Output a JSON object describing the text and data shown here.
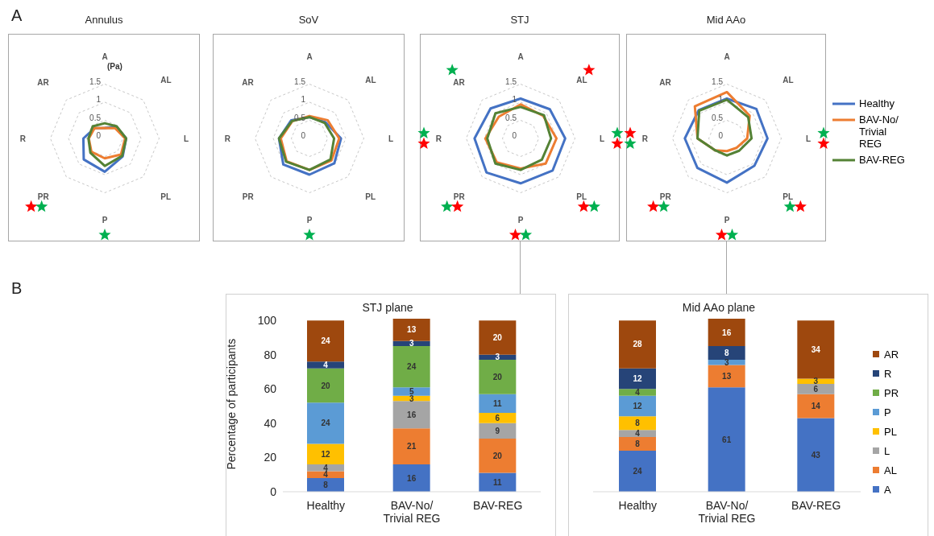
{
  "chart_data": [
    {
      "type": "radar",
      "title": "Annulus",
      "categories": [
        "A",
        "AL",
        "L",
        "PL",
        "P",
        "PR",
        "R",
        "AR"
      ],
      "ylim": [
        0,
        1.5
      ],
      "yticks": [
        0,
        0.5,
        1,
        1.5
      ],
      "ylabel": "(Pa)",
      "grid": true,
      "legend": false,
      "annotations": [
        "A"
      ],
      "series": [
        {
          "color": "#4472c4",
          "values": [
            0.29,
            0.46,
            0.59,
            0.7,
            0.92,
            0.82,
            0.59,
            0.4
          ]
        },
        {
          "color": "#ed7d31",
          "values": [
            0.29,
            0.4,
            0.56,
            0.63,
            0.55,
            0.52,
            0.44,
            0.4
          ]
        },
        {
          "color": "#548235",
          "values": [
            0.42,
            0.47,
            0.59,
            0.68,
            0.76,
            0.56,
            0.45,
            0.47
          ]
        }
      ]
    },
    {
      "type": "radar",
      "title": "SoV",
      "categories": [
        "A",
        "AL",
        "L",
        "PL",
        "P",
        "PR",
        "R",
        "AR"
      ],
      "ylim": [
        0,
        1.5
      ],
      "yticks": [
        0,
        0.5,
        1,
        1.5
      ],
      "grid": true,
      "legend": false,
      "series": [
        {
          "color": "#4472c4",
          "values": [
            0.59,
            0.63,
            0.87,
            0.97,
            1.0,
            1.02,
            0.84,
            0.71
          ]
        },
        {
          "color": "#ed7d31",
          "values": [
            0.62,
            0.71,
            0.82,
            0.86,
            0.87,
            0.89,
            0.79,
            0.67
          ]
        },
        {
          "color": "#548235",
          "values": [
            0.59,
            0.6,
            0.68,
            0.82,
            0.87,
            0.91,
            0.84,
            0.68
          ]
        }
      ]
    },
    {
      "type": "radar",
      "title": "STJ",
      "categories": [
        "A",
        "AL",
        "L",
        "PL",
        "P",
        "PR",
        "R",
        "AR"
      ],
      "ylim": [
        0,
        1.5
      ],
      "yticks": [
        0,
        0.5,
        1,
        1.5
      ],
      "grid": true,
      "legend": false,
      "series": [
        {
          "color": "#4472c4",
          "values": [
            1.1,
            1.14,
            1.23,
            1.25,
            1.24,
            1.33,
            1.27,
            1.17
          ]
        },
        {
          "color": "#ed7d31",
          "values": [
            0.94,
            0.88,
            0.99,
            0.98,
            0.83,
            0.93,
            0.97,
            0.85
          ]
        },
        {
          "color": "#548235",
          "values": [
            0.87,
            0.91,
            0.84,
            0.83,
            0.87,
            0.98,
            0.92,
            0.98
          ]
        }
      ]
    },
    {
      "type": "radar",
      "title": "Mid AAo",
      "categories": [
        "A",
        "AL",
        "L",
        "PL",
        "P",
        "PR",
        "R",
        "AR"
      ],
      "ylim": [
        0,
        1.5
      ],
      "yticks": [
        0,
        0.5,
        1,
        1.5
      ],
      "grid": true,
      "legend": "right",
      "series": [
        {
          "name": "Healthy",
          "color": "#4472c4",
          "values": [
            1.1,
            1.15,
            1.12,
            1.07,
            1.22,
            1.15,
            1.16,
            1.1
          ]
        },
        {
          "name": "BAV-No/ Trivial REG",
          "color": "#ed7d31",
          "values": [
            1.28,
            0.89,
            0.56,
            0.37,
            0.35,
            0.46,
            0.81,
            1.25
          ]
        },
        {
          "name": "BAV-REG",
          "color": "#548235",
          "values": [
            1.07,
            0.83,
            0.68,
            0.48,
            0.47,
            0.46,
            0.81,
            1.08
          ]
        }
      ]
    },
    {
      "type": "bar",
      "title": "STJ plane",
      "categories": [
        "Healthy",
        "BAV-No/ Trivial REG",
        "BAV-REG"
      ],
      "stacked": true,
      "ylim": [
        0,
        101
      ],
      "yticks": [
        0,
        20,
        40,
        60,
        80,
        100
      ],
      "ylabel": "Percentage of participants",
      "data_labels": true,
      "legend": false,
      "annotations": [
        "B"
      ],
      "series": [
        {
          "color": "#4472c4",
          "values": [
            8,
            16,
            11
          ]
        },
        {
          "color": "#ed7d31",
          "values": [
            4,
            21,
            20
          ]
        },
        {
          "color": "#a5a5a5",
          "values": [
            4,
            16,
            9
          ]
        },
        {
          "color": "#ffc000",
          "values": [
            12,
            3,
            6
          ]
        },
        {
          "color": "#5b9bd5",
          "values": [
            24,
            5,
            11
          ]
        },
        {
          "color": "#70ad47",
          "values": [
            20,
            24,
            20
          ]
        },
        {
          "color": "#264478",
          "values": [
            4,
            3,
            3
          ]
        },
        {
          "color": "#9e480e",
          "values": [
            24,
            13,
            20
          ]
        }
      ]
    },
    {
      "type": "bar",
      "title": "Mid AAo plane",
      "categories": [
        "Healthy",
        "BAV-No/ Trivial REG",
        "BAV-REG"
      ],
      "stacked": true,
      "ylim": [
        0,
        101
      ],
      "yticks": [
        0,
        20,
        40,
        60,
        80,
        100
      ],
      "tick_labels": "x",
      "data_labels": true,
      "legend": "right",
      "series": [
        {
          "name": "A",
          "color": "#4472c4",
          "values": [
            24,
            61,
            43
          ]
        },
        {
          "name": "AL",
          "color": "#ed7d31",
          "values": [
            8,
            13,
            14
          ]
        },
        {
          "name": "L",
          "color": "#a5a5a5",
          "values": [
            4,
            null,
            6
          ]
        },
        {
          "name": "PL",
          "color": "#ffc000",
          "values": [
            8,
            null,
            3
          ]
        },
        {
          "name": "P",
          "color": "#5b9bd5",
          "values": [
            12,
            3,
            null
          ]
        },
        {
          "name": "PR",
          "color": "#70ad47",
          "values": [
            4,
            null,
            null
          ]
        },
        {
          "name": "R",
          "color": "#264478",
          "values": [
            12,
            8,
            null
          ]
        },
        {
          "name": "AR",
          "color": "#9e480e",
          "values": [
            28,
            16,
            34
          ]
        }
      ]
    }
  ]
}
